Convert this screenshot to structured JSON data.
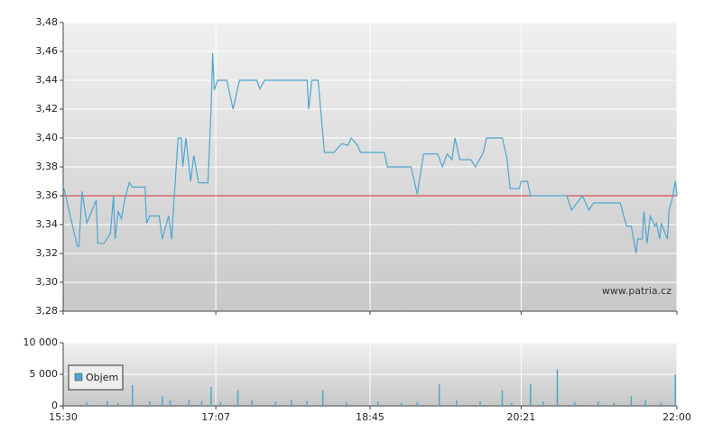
{
  "chart_data": [
    {
      "type": "line",
      "xlim": [
        "15:30",
        "22:00"
      ],
      "xticks": [
        "15:30",
        "17:07",
        "18:45",
        "20:21",
        "22:00"
      ],
      "ylim": [
        3.28,
        3.48
      ],
      "yticks": [
        {
          "value": 3.28,
          "label": "3,28"
        },
        {
          "value": 3.3,
          "label": "3,30"
        },
        {
          "value": 3.32,
          "label": "3,32"
        },
        {
          "value": 3.34,
          "label": "3,34"
        },
        {
          "value": 3.36,
          "label": "3,36"
        },
        {
          "value": 3.38,
          "label": "3,38"
        },
        {
          "value": 3.4,
          "label": "3,40"
        },
        {
          "value": 3.42,
          "label": "3,42"
        },
        {
          "value": 3.44,
          "label": "3,44"
        },
        {
          "value": 3.46,
          "label": "3,46"
        },
        {
          "value": 3.48,
          "label": "3,48"
        }
      ],
      "grid": true,
      "color": "#4ea6cf",
      "reference_line": {
        "value": 3.36,
        "color": "#e03030"
      },
      "watermark": "www.patria.cz",
      "x": [
        "15:30",
        "15:39",
        "15:40",
        "15:42",
        "15:45",
        "15:51",
        "15:52",
        "15:56",
        "16:00",
        "16:02",
        "16:03",
        "16:05",
        "16:07",
        "16:09",
        "16:12",
        "16:14",
        "16:22",
        "16:23",
        "16:25",
        "16:31",
        "16:33",
        "16:37",
        "16:39",
        "16:40",
        "16:43",
        "16:45",
        "16:46",
        "16:48",
        "16:51",
        "16:53",
        "16:56",
        "17:02",
        "17:04",
        "17:05",
        "17:06",
        "17:08",
        "17:14",
        "17:18",
        "17:22",
        "17:33",
        "17:35",
        "17:38",
        "18:05",
        "18:06",
        "18:08",
        "18:12",
        "18:16",
        "18:22",
        "18:27",
        "18:31",
        "18:33",
        "18:37",
        "18:39",
        "18:54",
        "18:56",
        "19:11",
        "19:15",
        "19:19",
        "19:28",
        "19:31",
        "19:34",
        "19:37",
        "19:39",
        "19:42",
        "19:49",
        "19:52",
        "19:57",
        "19:59",
        "20:09",
        "20:12",
        "20:14",
        "20:20",
        "20:21",
        "20:25",
        "20:27",
        "20:50",
        "20:53",
        "21:00",
        "21:04",
        "21:07",
        "21:24",
        "21:28",
        "21:31",
        "21:34",
        "21:35",
        "21:38",
        "21:39",
        "21:41",
        "21:43",
        "21:46",
        "21:47",
        "21:49",
        "21:50",
        "21:54",
        "21:55",
        "21:57",
        "21:59",
        "22:00"
      ],
      "values": [
        3.367,
        3.325,
        3.325,
        3.363,
        3.341,
        3.357,
        3.327,
        3.327,
        3.334,
        3.36,
        3.33,
        3.349,
        3.344,
        3.357,
        3.369,
        3.366,
        3.366,
        3.341,
        3.346,
        3.346,
        3.33,
        3.346,
        3.33,
        3.35,
        3.4,
        3.4,
        3.38,
        3.4,
        3.37,
        3.388,
        3.369,
        3.369,
        3.42,
        3.459,
        3.433,
        3.44,
        3.44,
        3.42,
        3.44,
        3.44,
        3.434,
        3.44,
        3.44,
        3.42,
        3.44,
        3.44,
        3.39,
        3.39,
        3.396,
        3.395,
        3.4,
        3.395,
        3.39,
        3.39,
        3.38,
        3.38,
        3.361,
        3.389,
        3.389,
        3.38,
        3.389,
        3.385,
        3.4,
        3.385,
        3.385,
        3.38,
        3.39,
        3.4,
        3.4,
        3.386,
        3.365,
        3.365,
        3.37,
        3.37,
        3.36,
        3.36,
        3.35,
        3.36,
        3.35,
        3.355,
        3.355,
        3.339,
        3.339,
        3.32,
        3.33,
        3.33,
        3.349,
        3.327,
        3.346,
        3.339,
        3.341,
        3.33,
        3.341,
        3.33,
        3.35,
        3.358,
        3.37,
        3.36
      ]
    },
    {
      "type": "bar",
      "xlim": [
        "15:30",
        "22:00"
      ],
      "xticks": [
        "15:30",
        "17:07",
        "18:45",
        "20:21",
        "22:00"
      ],
      "ylim": [
        0,
        10000
      ],
      "yticks": [
        0,
        {
          "value": 5000,
          "label": "5 000"
        },
        {
          "value": 10000,
          "label": "10 000"
        }
      ],
      "grid": true,
      "x": [
        "15:45",
        "15:58",
        "16:05",
        "16:14",
        "16:25",
        "16:33",
        "16:38",
        "16:50",
        "16:58",
        "17:04",
        "17:10",
        "17:21",
        "17:30",
        "17:45",
        "17:55",
        "18:05",
        "18:15",
        "18:30",
        "18:50",
        "19:05",
        "19:15",
        "19:29",
        "19:40",
        "19:55",
        "20:09",
        "20:15",
        "20:27",
        "20:35",
        "20:44",
        "20:55",
        "21:10",
        "21:20",
        "21:31",
        "21:40",
        "21:50",
        "21:59"
      ],
      "series": [
        {
          "name": "Objem",
          "color": "#4ea6cf",
          "values": [
            600,
            800,
            500,
            3300,
            700,
            1500,
            900,
            1000,
            800,
            3000,
            600,
            2500,
            900,
            700,
            1000,
            800,
            2500,
            600,
            700,
            500,
            600,
            3500,
            900,
            700,
            2500,
            500,
            3500,
            700,
            5800,
            600,
            700,
            500,
            1500,
            900,
            600,
            5000
          ]
        }
      ]
    }
  ]
}
